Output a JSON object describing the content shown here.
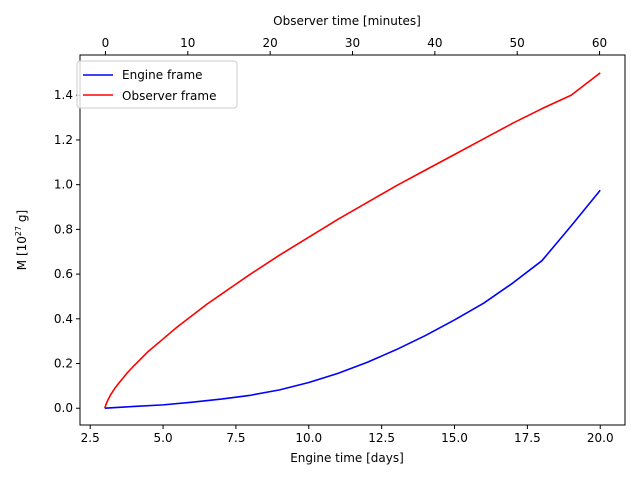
{
  "chart_data": {
    "type": "line",
    "xlabel": "Engine time [days]",
    "ylabel_main": "M [10",
    "ylabel_exponent": "27",
    "ylabel_tail": " g]",
    "top_xlabel": "Observer time [minutes]",
    "xlim": [
      2.15,
      20.85
    ],
    "ylim": [
      -0.075,
      1.58
    ],
    "top_xlim": [
      -3.09,
      63.09
    ],
    "x_ticks": [
      2.5,
      5.0,
      7.5,
      10.0,
      12.5,
      15.0,
      17.5,
      20.0
    ],
    "x_tick_labels": [
      "2.5",
      "5.0",
      "7.5",
      "10.0",
      "12.5",
      "15.0",
      "17.5",
      "20.0"
    ],
    "y_ticks": [
      0.0,
      0.2,
      0.4,
      0.6,
      0.8,
      1.0,
      1.2,
      1.4
    ],
    "y_tick_labels": [
      "0.0",
      "0.2",
      "0.4",
      "0.6",
      "0.8",
      "1.0",
      "1.2",
      "1.4"
    ],
    "top_ticks": [
      0,
      10,
      20,
      30,
      40,
      50,
      60
    ],
    "top_tick_labels": [
      "0",
      "10",
      "20",
      "30",
      "40",
      "50",
      "60"
    ],
    "grid": false,
    "legend_position": "top-left",
    "series": [
      {
        "name": "Engine frame",
        "color": "#0000ff",
        "x": [
          3.0,
          4.0,
          5.0,
          6.0,
          7.0,
          8.0,
          9.0,
          10.0,
          11.0,
          12.0,
          13.0,
          14.0,
          15.0,
          16.0,
          17.0,
          18.0,
          19.0,
          20.0
        ],
        "y": [
          0.0,
          0.008,
          0.015,
          0.027,
          0.041,
          0.058,
          0.082,
          0.115,
          0.156,
          0.205,
          0.262,
          0.325,
          0.395,
          0.47,
          0.56,
          0.66,
          0.815,
          0.975
        ]
      },
      {
        "name": "Observer frame",
        "color": "#ff0000",
        "x": [
          3.0,
          3.05,
          3.1,
          3.2,
          3.35,
          3.5,
          3.75,
          4.0,
          4.5,
          5.0,
          5.5,
          6.0,
          6.5,
          7.0,
          7.5,
          8.0,
          9.0,
          10.0,
          11.0,
          12.0,
          13.0,
          14.0,
          15.0,
          16.0,
          17.0,
          18.0,
          19.0,
          20.0
        ],
        "y": [
          0.0,
          0.02,
          0.035,
          0.06,
          0.09,
          0.115,
          0.155,
          0.19,
          0.255,
          0.31,
          0.365,
          0.415,
          0.465,
          0.51,
          0.555,
          0.6,
          0.685,
          0.765,
          0.845,
          0.92,
          0.995,
          1.065,
          1.135,
          1.205,
          1.275,
          1.34,
          1.4,
          1.5
        ]
      }
    ]
  }
}
